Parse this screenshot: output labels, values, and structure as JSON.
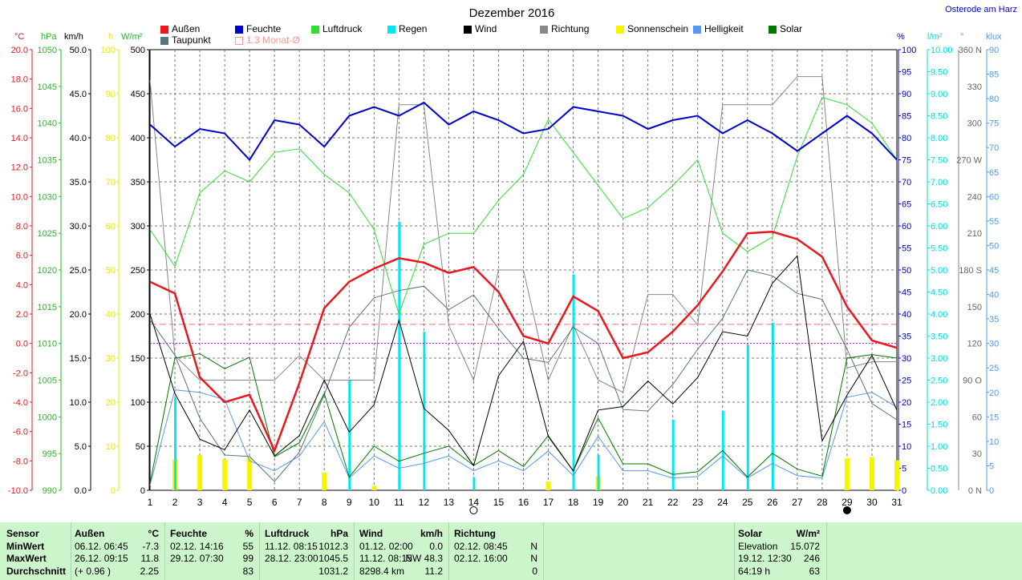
{
  "title": "Dezember 2016",
  "location": "Osterode am Harz",
  "units_left": [
    "°C",
    "hPa",
    "km/h",
    "h",
    "W/m²"
  ],
  "units_right": [
    "%",
    "l/m²",
    "°",
    "klux"
  ],
  "axes": {
    "temp": [
      "20.0",
      "18.0",
      "16.0",
      "14.0",
      "12.0",
      "10.0",
      "8.0",
      "6.0",
      "4.0",
      "2.0",
      "0.0",
      "-2.0",
      "-4.0",
      "-6.0",
      "-8.0",
      "-10.0"
    ],
    "hpa": [
      "1050",
      "1045",
      "1040",
      "1035",
      "1030",
      "1025",
      "1020",
      "1015",
      "1010",
      "1005",
      "1000",
      "995",
      "990"
    ],
    "kmh": [
      "50.0",
      "45.0",
      "40.0",
      "35.0",
      "30.0",
      "25.0",
      "20.0",
      "15.0",
      "10.0",
      "5.0",
      "0.0"
    ],
    "sun": [
      "100",
      "90",
      "80",
      "70",
      "60",
      "50",
      "40",
      "30",
      "20",
      "10",
      "0"
    ],
    "wm2": [
      "500",
      "450",
      "400",
      "350",
      "300",
      "250",
      "200",
      "150",
      "100",
      "50",
      "0"
    ],
    "pct": [
      "100",
      "95",
      "90",
      "85",
      "80",
      "75",
      "70",
      "65",
      "60",
      "55",
      "50",
      "45",
      "40",
      "35",
      "30",
      "25",
      "20",
      "15",
      "10",
      "5",
      "0"
    ],
    "rain": [
      "10.00",
      "9.50",
      "9.00",
      "8.50",
      "8.00",
      "7.50",
      "7.00",
      "6.50",
      "6.00",
      "5.50",
      "5.00",
      "4.50",
      "4.00",
      "3.50",
      "3.00",
      "2.50",
      "2.00",
      "1.50",
      "1.00",
      "0.50",
      "0.00"
    ],
    "dir": [
      {
        "v": "360 N",
        "d": 360
      },
      {
        "v": "330",
        "d": 330
      },
      {
        "v": "300",
        "d": 300
      },
      {
        "v": "270 W",
        "d": 270
      },
      {
        "v": "240",
        "d": 240
      },
      {
        "v": "210",
        "d": 210
      },
      {
        "v": "180 S",
        "d": 180
      },
      {
        "v": "150",
        "d": 150
      },
      {
        "v": "120",
        "d": 120
      },
      {
        "v": "90 O",
        "d": 90
      },
      {
        "v": "60",
        "d": 60
      },
      {
        "v": "30",
        "d": 30
      },
      {
        "v": "0 N",
        "d": 0
      }
    ],
    "klux": [
      "90",
      "85",
      "80",
      "75",
      "70",
      "65",
      "60",
      "55",
      "50",
      "45",
      "40",
      "35",
      "30",
      "25",
      "20",
      "15",
      "10",
      "5",
      "0"
    ]
  },
  "legend": [
    {
      "label": "Außen",
      "color": "#e8181e"
    },
    {
      "label": "Feuchte",
      "color": "#0000cc"
    },
    {
      "label": "Luftdruck",
      "color": "#33dd33"
    },
    {
      "label": "Regen",
      "color": "#00e8f0"
    },
    {
      "label": "Wind",
      "color": "#000000"
    },
    {
      "label": "Richtung",
      "color": "#888888"
    },
    {
      "label": "Sonnenschein",
      "color": "#f5f500"
    },
    {
      "label": "Helligkeit",
      "color": "#5599ee"
    },
    {
      "label": "Solar",
      "color": "#007700"
    },
    {
      "label": "Taupunkt",
      "color": "#557777"
    },
    {
      "label": "1.3 Monat-Ø",
      "color": "#ff9999"
    }
  ],
  "chart_data": {
    "type": "line",
    "title": "Dezember 2016",
    "x": [
      1,
      2,
      3,
      4,
      5,
      6,
      7,
      8,
      9,
      10,
      11,
      12,
      13,
      14,
      15,
      16,
      17,
      18,
      19,
      20,
      21,
      22,
      23,
      24,
      25,
      26,
      27,
      28,
      29,
      30,
      31
    ],
    "xlim": [
      1,
      31
    ],
    "series": [
      {
        "name": "Außen",
        "axis": "°C",
        "ylim": [
          -10,
          20
        ],
        "color": "#e8181e",
        "values": [
          4.2,
          3.4,
          -2.3,
          -4.0,
          -3.5,
          -7.3,
          -2.7,
          2.4,
          4.2,
          5.1,
          5.8,
          5.5,
          4.8,
          5.2,
          3.5,
          0.5,
          0.0,
          3.2,
          2.2,
          -1.0,
          -0.6,
          0.8,
          2.6,
          4.9,
          7.5,
          7.6,
          7.1,
          5.9,
          2.5,
          0.2,
          -0.3
        ]
      },
      {
        "name": "Taupunkt",
        "axis": "°C",
        "ylim": [
          -10,
          20
        ],
        "color": "#557777",
        "values": [
          1.6,
          -0.8,
          -5.1,
          -7.6,
          -7.7,
          -9.4,
          -7.4,
          -3.5,
          1.1,
          3.1,
          3.6,
          3.9,
          2.3,
          3.3,
          1.0,
          -1.0,
          -1.3,
          1.1,
          0.0,
          -4.5,
          -4.6,
          -2.8,
          -0.4,
          1.7,
          5.0,
          4.6,
          3.4,
          3.0,
          -0.4,
          -4.1,
          -5.2
        ]
      },
      {
        "name": "Feuchte",
        "axis": "%",
        "ylim": [
          0,
          100
        ],
        "color": "#0000cc",
        "values": [
          83,
          78,
          82,
          81,
          75,
          84,
          83,
          78,
          85,
          87,
          85,
          88,
          83,
          86,
          84,
          81,
          82,
          87,
          86,
          85,
          82,
          84,
          85,
          81,
          84,
          81,
          77,
          81,
          85,
          81,
          75
        ]
      },
      {
        "name": "Luftdruck",
        "axis": "hPa",
        "ylim": [
          990,
          1050
        ],
        "color": "#33dd33",
        "values": [
          1025.5,
          1020.5,
          1030.5,
          1033.5,
          1032,
          1036,
          1036.5,
          1033,
          1030.5,
          1025.5,
          1014,
          1023.5,
          1025,
          1025,
          1029.5,
          1033,
          1040.5,
          1036,
          1031.5,
          1027,
          1028.5,
          1031.5,
          1035,
          1025,
          1022.5,
          1024.5,
          1035.5,
          1043.5,
          1042.5,
          1040,
          1035
        ]
      },
      {
        "name": "Wind",
        "axis": "km/h",
        "ylim": [
          0,
          50
        ],
        "color": "#000000",
        "values": [
          20,
          11,
          5.8,
          4.6,
          9.1,
          3.9,
          6.2,
          12.5,
          6.6,
          9.7,
          19.3,
          9.3,
          6.8,
          2.8,
          13,
          16.9,
          6.1,
          2.2,
          9.1,
          9.5,
          12.4,
          9.8,
          12.8,
          18,
          17.5,
          23.5,
          26.6,
          5.6,
          10.8,
          15.3,
          9.1
        ]
      },
      {
        "name": "Richtung",
        "axis": "°",
        "ylim": [
          0,
          360
        ],
        "color": "#888888",
        "values": [
          335,
          110,
          90,
          90,
          90,
          90,
          110,
          90,
          90,
          90,
          315,
          315,
          135,
          90,
          180,
          180,
          90,
          135,
          90,
          80,
          160,
          160,
          135,
          315,
          315,
          315,
          338,
          338,
          100,
          105,
          105
        ]
      },
      {
        "name": "Solar",
        "axis": "W/m²",
        "ylim": [
          0,
          500
        ],
        "color": "#007700",
        "values": [
          8,
          150,
          155,
          138,
          151,
          38,
          54,
          110,
          15,
          50,
          33,
          42,
          50,
          28,
          45,
          27,
          62,
          22,
          82,
          30,
          30,
          18,
          21,
          45,
          15,
          42,
          24,
          16,
          150,
          154,
          150
        ]
      },
      {
        "name": "Helligkeit",
        "axis": "klux",
        "ylim": [
          0,
          90
        ],
        "color": "#5599ee",
        "values": [
          1,
          20.5,
          20,
          18.5,
          6,
          4,
          7,
          14,
          2.5,
          7,
          4.5,
          5.5,
          7,
          4,
          6,
          4,
          8,
          3,
          11,
          4,
          4,
          2.5,
          2.8,
          7,
          2.5,
          5.5,
          3,
          2.5,
          19,
          20,
          17
        ]
      },
      {
        "name": "Regen",
        "axis": "l/m²",
        "ylim": [
          0,
          10
        ],
        "color": "#00e8f0",
        "type": "bar",
        "values": [
          0,
          2.1,
          0,
          0,
          0,
          0,
          0,
          0,
          2.5,
          0,
          6.1,
          3.6,
          0,
          0.3,
          0,
          0,
          0,
          4.9,
          0.8,
          0,
          0,
          1.6,
          0,
          1.8,
          3.3,
          3.8,
          0,
          0,
          0,
          0,
          0
        ]
      },
      {
        "name": "Sonnenschein",
        "axis": "h",
        "ylim": [
          0,
          100
        ],
        "color": "#f5f500",
        "type": "bar",
        "values": [
          0,
          7,
          8,
          7,
          7.5,
          0,
          0,
          4,
          0,
          1,
          0,
          0,
          0,
          0,
          0,
          0,
          2,
          0,
          3.2,
          0,
          0,
          0,
          0,
          0,
          0,
          0,
          0,
          0,
          7.3,
          7.5,
          6.8
        ]
      },
      {
        "name": "1.3 Monat-Ø",
        "axis": "°C",
        "ylim": [
          -10,
          20
        ],
        "color": "#e8181e",
        "type": "hline",
        "value": 1.3
      },
      {
        "axis": "°C",
        "ylim": [
          -10,
          20
        ],
        "color": "#cc00cc",
        "type": "hline",
        "value": 0.0
      }
    ],
    "moon_markers": [
      {
        "day": 14,
        "phase": "full"
      },
      {
        "day": 29,
        "phase": "new"
      }
    ]
  },
  "stats": {
    "headers": [
      "Sensor",
      "Außen",
      "°C",
      "Feuchte",
      "%",
      "Luftdruck",
      "hPa",
      "Wind",
      "km/h",
      "Richtung",
      "Solar",
      "W/m²"
    ],
    "row_labels": [
      "MinWert",
      "MaxWert",
      "Durchschnitt"
    ],
    "aussen": [
      [
        "06.12.  06:45",
        "-7.3"
      ],
      [
        "26.12.  09:15",
        "11.8"
      ],
      [
        "(+ 0.96 )",
        "2.25"
      ]
    ],
    "feuchte": [
      [
        "02.12.  14:16",
        "55"
      ],
      [
        "29.12.  07:30",
        "99"
      ],
      [
        "",
        "83"
      ]
    ],
    "luftdruck": [
      [
        "11.12.  08:15",
        "1012.3"
      ],
      [
        "28.12.  23:00",
        "1045.5"
      ],
      [
        "",
        "1031.2"
      ]
    ],
    "wind": [
      [
        "01.12.  02:00",
        "0.0"
      ],
      [
        "11.12.  08:15",
        "NW  48.3"
      ],
      [
        "8298.4 km",
        "11.2"
      ]
    ],
    "richtung": [
      [
        "02.12.  08:45",
        "N"
      ],
      [
        "02.12.  16:00",
        "N"
      ],
      [
        "",
        "0"
      ]
    ],
    "solar": [
      [
        "Elevation",
        "15.072"
      ],
      [
        "19.12.  12:30",
        "246"
      ],
      [
        "64:19 h",
        "63"
      ]
    ]
  }
}
